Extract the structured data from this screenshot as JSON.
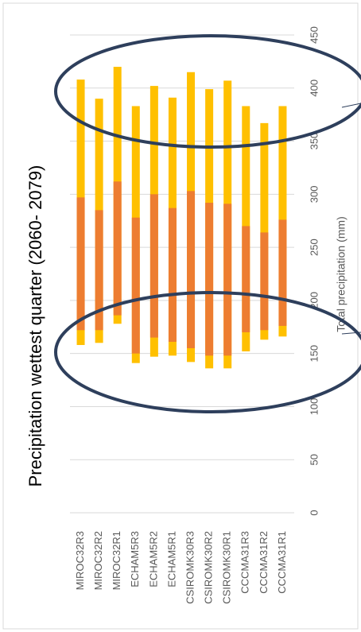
{
  "chart_data": {
    "type": "floating-bar",
    "title": "Precipitation wettest quarter (2060- 2079)",
    "axis_label": "Total precipitation (mm)",
    "categories": [
      "MIROC32R3",
      "MIROC32R2",
      "MIROC32R1",
      "ECHAM5R3",
      "ECHAM5R2",
      "ECHAM5R1",
      "CSIROMK30R3",
      "CSIROMK30R2",
      "CSIROMK30R1",
      "CCCMA31R3",
      "CCCMA31R2",
      "CCCMA31R1"
    ],
    "series": [
      {
        "color": "#ffc000",
        "values": [
          [
            158,
            408
          ],
          [
            160,
            390
          ],
          [
            178,
            420
          ],
          [
            141,
            383
          ],
          [
            147,
            402
          ],
          [
            148,
            391
          ],
          [
            142,
            415
          ],
          [
            136,
            399
          ],
          [
            136,
            407
          ],
          [
            152,
            383
          ],
          [
            163,
            367
          ],
          [
            166,
            383
          ]
        ]
      },
      {
        "color": "#ed7d31",
        "values": [
          [
            172,
            297
          ],
          [
            172,
            285
          ],
          [
            186,
            312
          ],
          [
            150,
            278
          ],
          [
            165,
            300
          ],
          [
            161,
            287
          ],
          [
            155,
            303
          ],
          [
            148,
            292
          ],
          [
            148,
            291
          ],
          [
            170,
            270
          ],
          [
            172,
            264
          ],
          [
            176,
            276
          ]
        ]
      }
    ],
    "ylim": [
      0,
      450
    ],
    "yticks": [
      0,
      50,
      100,
      150,
      200,
      250,
      300,
      350,
      400,
      450
    ],
    "grid": true
  }
}
